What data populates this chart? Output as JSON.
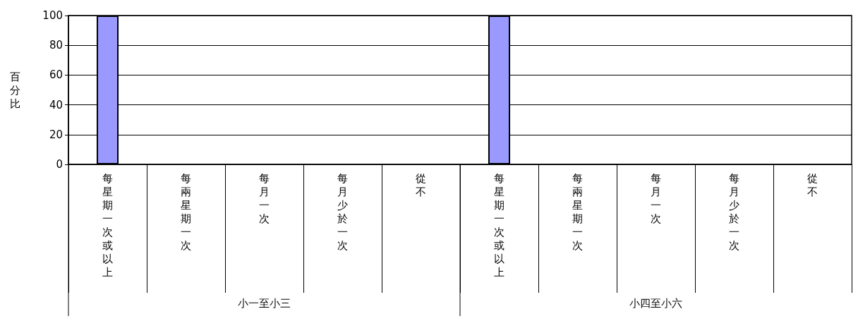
{
  "chart_data": {
    "type": "bar",
    "ylabel": "百分比",
    "categories": [
      "每星期一次或以上",
      "每兩星期一次",
      "每月一次",
      "每月少於一次",
      "從不",
      "每星期一次或以上",
      "每兩星期一次",
      "每月一次",
      "每月少於一次",
      "從不"
    ],
    "values": [
      100,
      0,
      0,
      0,
      0,
      100,
      0,
      0,
      0,
      0
    ],
    "color": "#9999ff",
    "ylim": [
      0,
      100
    ],
    "yticks": [
      0,
      20,
      40,
      60,
      80,
      100
    ],
    "grid": "y",
    "annotations": [
      "小一至小三",
      "小四至小六"
    ]
  }
}
